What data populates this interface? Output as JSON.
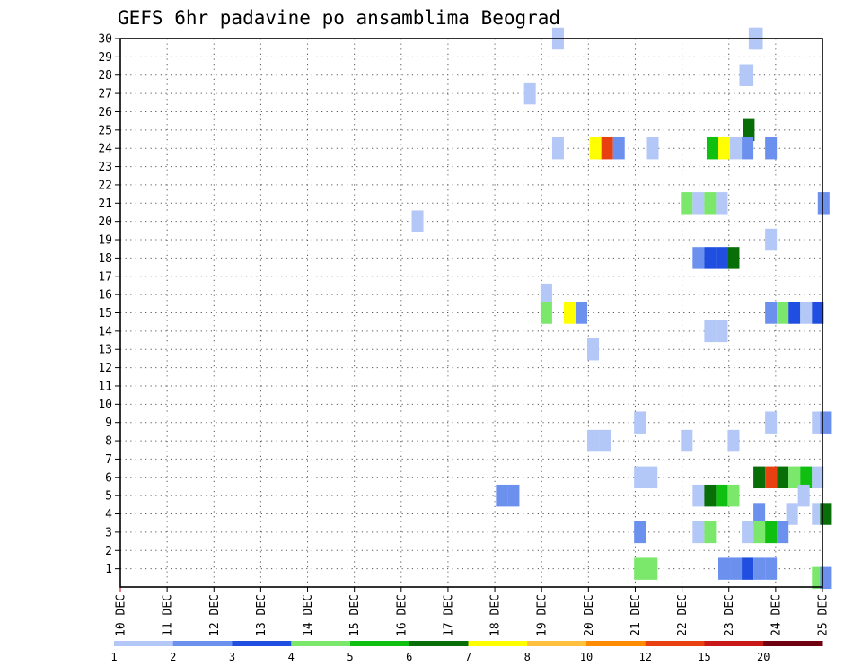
{
  "chart_data": {
    "type": "heatmap",
    "title": "GEFS 6hr padavine po ansamblima Beograd",
    "xlabel": "",
    "ylabel": "",
    "x_range": [
      0,
      60
    ],
    "y_range": [
      0,
      30
    ],
    "x_tick_labels": [
      "10 DEC",
      "11 DEC",
      "12 DEC",
      "13 DEC",
      "14 DEC",
      "15 DEC",
      "16 DEC",
      "17 DEC",
      "18 DEC",
      "19 DEC",
      "20 DEC",
      "21 DEC",
      "22 DEC",
      "23 DEC",
      "24 DEC",
      "25 DEC"
    ],
    "y_tick_labels": [
      "1",
      "2",
      "3",
      "4",
      "5",
      "6",
      "7",
      "8",
      "9",
      "10",
      "11",
      "12",
      "13",
      "14",
      "15",
      "16",
      "17",
      "18",
      "19",
      "20",
      "21",
      "22",
      "23",
      "24",
      "25",
      "26",
      "27",
      "28",
      "29",
      "30"
    ],
    "grid": true,
    "legend": {
      "position": "bottom",
      "bins": [
        {
          "color": "#b4c8f8",
          "label": "1"
        },
        {
          "color": "#6b90ee",
          "label": "2"
        },
        {
          "color": "#1f4ee0",
          "label": "3"
        },
        {
          "color": "#7be86b",
          "label": "4"
        },
        {
          "color": "#10c010",
          "label": "5"
        },
        {
          "color": "#086e08",
          "label": "6"
        },
        {
          "color": "#ffff00",
          "label": "7"
        },
        {
          "color": "#ffc040",
          "label": "8"
        },
        {
          "color": "#ff8c00",
          "label": "10"
        },
        {
          "color": "#e84010",
          "label": "12"
        },
        {
          "color": "#c81818",
          "label": "15"
        },
        {
          "color": "#6e0010",
          "label": "20"
        }
      ]
    },
    "cells": [
      {
        "t": 36.9,
        "m": 30,
        "c": 0
      },
      {
        "t": 53.7,
        "m": 30,
        "c": 0
      },
      {
        "t": 53.9,
        "m": 30,
        "c": 0
      },
      {
        "t": 52.9,
        "m": 28,
        "c": 0
      },
      {
        "t": 53.1,
        "m": 28,
        "c": 0
      },
      {
        "t": 34.5,
        "m": 27,
        "c": 0
      },
      {
        "t": 53.2,
        "m": 25,
        "c": 5
      },
      {
        "t": 36.9,
        "m": 24,
        "c": 0
      },
      {
        "t": 40.1,
        "m": 24,
        "c": 6
      },
      {
        "t": 41.1,
        "m": 24,
        "c": 9
      },
      {
        "t": 42.1,
        "m": 24,
        "c": 1
      },
      {
        "t": 45.0,
        "m": 24,
        "c": 0
      },
      {
        "t": 50.1,
        "m": 24,
        "c": 4
      },
      {
        "t": 51.1,
        "m": 24,
        "c": 6
      },
      {
        "t": 52.1,
        "m": 24,
        "c": 0
      },
      {
        "t": 53.1,
        "m": 24,
        "c": 1
      },
      {
        "t": 55.1,
        "m": 24,
        "c": 1
      },
      {
        "t": 47.9,
        "m": 21,
        "c": 3
      },
      {
        "t": 48.9,
        "m": 21,
        "c": 0
      },
      {
        "t": 49.9,
        "m": 21,
        "c": 3
      },
      {
        "t": 50.9,
        "m": 21,
        "c": 0
      },
      {
        "t": 59.6,
        "m": 21,
        "c": 1
      },
      {
        "t": 24.9,
        "m": 20,
        "c": 0
      },
      {
        "t": 55.1,
        "m": 19,
        "c": 0
      },
      {
        "t": 48.9,
        "m": 18,
        "c": 1
      },
      {
        "t": 49.9,
        "m": 18,
        "c": 2
      },
      {
        "t": 50.9,
        "m": 18,
        "c": 2
      },
      {
        "t": 51.9,
        "m": 18,
        "c": 5
      },
      {
        "t": 35.9,
        "m": 16,
        "c": 0
      },
      {
        "t": 35.9,
        "m": 15,
        "c": 3
      },
      {
        "t": 37.9,
        "m": 15,
        "c": 6
      },
      {
        "t": 38.9,
        "m": 15,
        "c": 1
      },
      {
        "t": 55.1,
        "m": 15,
        "c": 1
      },
      {
        "t": 56.1,
        "m": 15,
        "c": 3
      },
      {
        "t": 57.1,
        "m": 15,
        "c": 2
      },
      {
        "t": 58.1,
        "m": 15,
        "c": 0
      },
      {
        "t": 59.1,
        "m": 15,
        "c": 2
      },
      {
        "t": 49.9,
        "m": 14,
        "c": 0
      },
      {
        "t": 50.9,
        "m": 14,
        "c": 0
      },
      {
        "t": 39.9,
        "m": 13,
        "c": 0
      },
      {
        "t": 43.9,
        "m": 9,
        "c": 0
      },
      {
        "t": 55.1,
        "m": 9,
        "c": 0
      },
      {
        "t": 59.1,
        "m": 9,
        "c": 0
      },
      {
        "t": 59.8,
        "m": 9,
        "c": 1
      },
      {
        "t": 39.9,
        "m": 8,
        "c": 0
      },
      {
        "t": 40.9,
        "m": 8,
        "c": 0
      },
      {
        "t": 47.9,
        "m": 8,
        "c": 0
      },
      {
        "t": 51.9,
        "m": 8,
        "c": 0
      },
      {
        "t": 43.9,
        "m": 6,
        "c": 0
      },
      {
        "t": 44.9,
        "m": 6,
        "c": 0
      },
      {
        "t": 54.1,
        "m": 6,
        "c": 5
      },
      {
        "t": 55.1,
        "m": 6,
        "c": 9
      },
      {
        "t": 56.1,
        "m": 6,
        "c": 5
      },
      {
        "t": 57.1,
        "m": 6,
        "c": 3
      },
      {
        "t": 58.1,
        "m": 6,
        "c": 4
      },
      {
        "t": 59.1,
        "m": 6,
        "c": 0
      },
      {
        "t": 32.1,
        "m": 5,
        "c": 1
      },
      {
        "t": 33.1,
        "m": 5,
        "c": 1
      },
      {
        "t": 48.9,
        "m": 5,
        "c": 0
      },
      {
        "t": 49.9,
        "m": 5,
        "c": 5
      },
      {
        "t": 50.9,
        "m": 5,
        "c": 4
      },
      {
        "t": 51.9,
        "m": 5,
        "c": 3
      },
      {
        "t": 57.9,
        "m": 5,
        "c": 0
      },
      {
        "t": 54.1,
        "m": 4,
        "c": 1
      },
      {
        "t": 56.9,
        "m": 4,
        "c": 0
      },
      {
        "t": 59.1,
        "m": 4,
        "c": 0
      },
      {
        "t": 59.8,
        "m": 4,
        "c": 5
      },
      {
        "t": 43.9,
        "m": 3,
        "c": 1
      },
      {
        "t": 48.9,
        "m": 3,
        "c": 0
      },
      {
        "t": 49.9,
        "m": 3,
        "c": 3
      },
      {
        "t": 53.1,
        "m": 3,
        "c": 0
      },
      {
        "t": 54.1,
        "m": 3,
        "c": 3
      },
      {
        "t": 55.1,
        "m": 3,
        "c": 4
      },
      {
        "t": 56.1,
        "m": 3,
        "c": 1
      },
      {
        "t": 43.9,
        "m": 1,
        "c": 3
      },
      {
        "t": 44.9,
        "m": 1,
        "c": 3
      },
      {
        "t": 51.1,
        "m": 1,
        "c": 1
      },
      {
        "t": 52.1,
        "m": 1,
        "c": 1
      },
      {
        "t": 53.1,
        "m": 1,
        "c": 2
      },
      {
        "t": 54.1,
        "m": 1,
        "c": 1
      },
      {
        "t": 55.1,
        "m": 1,
        "c": 1
      },
      {
        "t": 59.1,
        "m": 0.5,
        "c": 3
      },
      {
        "t": 59.8,
        "m": 0.5,
        "c": 1
      }
    ]
  }
}
